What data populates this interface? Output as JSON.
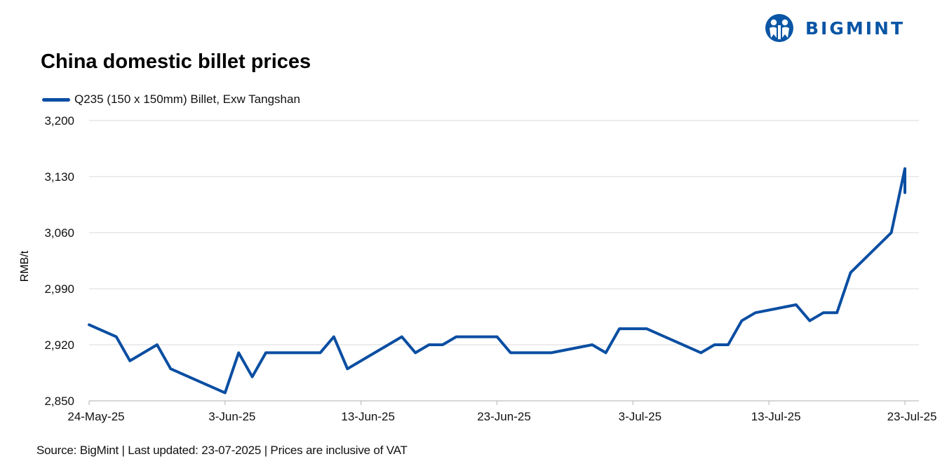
{
  "brand": {
    "name": "BIGMINT",
    "color": "#0a55a5"
  },
  "footer": {
    "text": "Source: BigMint | Last updated: 23-07-2025 | Prices are inclusive of VAT"
  },
  "chart_data": {
    "type": "line",
    "title": "China domestic billet prices",
    "xlabel": "",
    "ylabel": "RMB/t",
    "ylim": [
      2850,
      3200
    ],
    "yticks": [
      2850,
      2920,
      2990,
      3060,
      3130,
      3200
    ],
    "ytick_labels": [
      "2,850",
      "2,920",
      "2,990",
      "3,060",
      "3,130",
      "3,200"
    ],
    "xlim": [
      "2025-05-24",
      "2025-07-23"
    ],
    "xticks": [
      "2025-05-24",
      "2025-06-03",
      "2025-06-13",
      "2025-06-23",
      "2025-07-03",
      "2025-07-13",
      "2025-07-23"
    ],
    "xtick_labels": [
      "24-May-25",
      "3-Jun-25",
      "13-Jun-25",
      "23-Jun-25",
      "3-Jul-25",
      "13-Jul-25",
      "23-Jul-25"
    ],
    "grid": true,
    "legend_position": "top-left",
    "series": [
      {
        "name": "Q235 (150 x 150mm) Billet, Exw Tangshan",
        "color": "#0a4ea2",
        "points": [
          [
            "2025-05-24",
            2945
          ],
          [
            "2025-05-26",
            2930
          ],
          [
            "2025-05-27",
            2900
          ],
          [
            "2025-05-29",
            2920
          ],
          [
            "2025-05-30",
            2890
          ],
          [
            "2025-06-03",
            2860
          ],
          [
            "2025-06-04",
            2910
          ],
          [
            "2025-06-05",
            2880
          ],
          [
            "2025-06-06",
            2910
          ],
          [
            "2025-06-10",
            2910
          ],
          [
            "2025-06-11",
            2930
          ],
          [
            "2025-06-12",
            2890
          ],
          [
            "2025-06-16",
            2930
          ],
          [
            "2025-06-17",
            2910
          ],
          [
            "2025-06-18",
            2920
          ],
          [
            "2025-06-19",
            2920
          ],
          [
            "2025-06-20",
            2930
          ],
          [
            "2025-06-23",
            2930
          ],
          [
            "2025-06-24",
            2910
          ],
          [
            "2025-06-27",
            2910
          ],
          [
            "2025-06-30",
            2920
          ],
          [
            "2025-07-01",
            2910
          ],
          [
            "2025-07-02",
            2940
          ],
          [
            "2025-07-04",
            2940
          ],
          [
            "2025-07-08",
            2910
          ],
          [
            "2025-07-09",
            2920
          ],
          [
            "2025-07-10",
            2920
          ],
          [
            "2025-07-11",
            2950
          ],
          [
            "2025-07-12",
            2960
          ],
          [
            "2025-07-15",
            2970
          ],
          [
            "2025-07-16",
            2950
          ],
          [
            "2025-07-17",
            2960
          ],
          [
            "2025-07-18",
            2960
          ],
          [
            "2025-07-19",
            3010
          ],
          [
            "2025-07-22",
            3060
          ],
          [
            "2025-07-23",
            3140
          ],
          [
            "2025-07-23",
            3110
          ]
        ]
      }
    ]
  }
}
